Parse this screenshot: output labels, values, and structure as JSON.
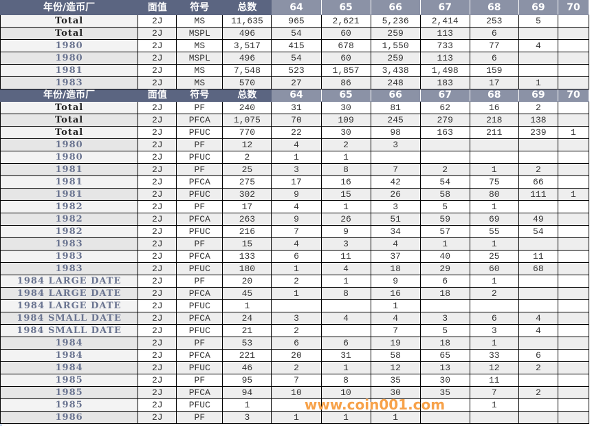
{
  "header": [
    "年份/造币厂",
    "面值",
    "符号",
    "总数",
    "64",
    "65",
    "66",
    "67",
    "68",
    "69",
    "70"
  ],
  "blocks": [
    {
      "rows": [
        [
          "Total",
          "2J",
          "MS",
          "11,635",
          "965",
          "2,621",
          "5,236",
          "2,414",
          "253",
          "5",
          ""
        ],
        [
          "Total",
          "2J",
          "MSPL",
          "496",
          "54",
          "60",
          "259",
          "113",
          "6",
          "",
          ""
        ],
        [
          "1980",
          "2J",
          "MS",
          "3,517",
          "415",
          "678",
          "1,550",
          "733",
          "77",
          "4",
          ""
        ],
        [
          "1980",
          "2J",
          "MSPL",
          "496",
          "54",
          "60",
          "259",
          "113",
          "6",
          "",
          ""
        ],
        [
          "1981",
          "2J",
          "MS",
          "7,548",
          "523",
          "1,857",
          "3,438",
          "1,498",
          "159",
          "",
          ""
        ],
        [
          "1983",
          "2J",
          "MS",
          "570",
          "27",
          "86",
          "248",
          "183",
          "17",
          "1",
          ""
        ]
      ]
    },
    {
      "rows": [
        [
          "Total",
          "2J",
          "PF",
          "240",
          "31",
          "30",
          "81",
          "62",
          "16",
          "2",
          ""
        ],
        [
          "Total",
          "2J",
          "PFCA",
          "1,075",
          "70",
          "109",
          "245",
          "279",
          "218",
          "138",
          ""
        ],
        [
          "Total",
          "2J",
          "PFUC",
          "770",
          "22",
          "30",
          "98",
          "163",
          "211",
          "239",
          "1"
        ],
        [
          "1980",
          "2J",
          "PF",
          "12",
          "4",
          "2",
          "3",
          "",
          "",
          "",
          ""
        ],
        [
          "1980",
          "2J",
          "PFUC",
          "2",
          "1",
          "1",
          "",
          "",
          "",
          "",
          ""
        ],
        [
          "1981",
          "2J",
          "PF",
          "25",
          "3",
          "8",
          "7",
          "2",
          "1",
          "2",
          ""
        ],
        [
          "1981",
          "2J",
          "PFCA",
          "275",
          "17",
          "16",
          "42",
          "54",
          "75",
          "66",
          ""
        ],
        [
          "1981",
          "2J",
          "PFUC",
          "302",
          "9",
          "15",
          "26",
          "58",
          "80",
          "111",
          "1"
        ],
        [
          "1982",
          "2J",
          "PF",
          "17",
          "4",
          "1",
          "3",
          "5",
          "1",
          "",
          ""
        ],
        [
          "1982",
          "2J",
          "PFCA",
          "263",
          "9",
          "26",
          "51",
          "59",
          "69",
          "49",
          ""
        ],
        [
          "1982",
          "2J",
          "PFUC",
          "216",
          "7",
          "9",
          "34",
          "57",
          "55",
          "54",
          ""
        ],
        [
          "1983",
          "2J",
          "PF",
          "15",
          "4",
          "3",
          "4",
          "1",
          "1",
          "",
          ""
        ],
        [
          "1983",
          "2J",
          "PFCA",
          "133",
          "6",
          "11",
          "37",
          "40",
          "25",
          "11",
          ""
        ],
        [
          "1983",
          "2J",
          "PFUC",
          "180",
          "1",
          "4",
          "18",
          "29",
          "60",
          "68",
          ""
        ],
        [
          "1984 LARGE DATE",
          "2J",
          "PF",
          "20",
          "2",
          "1",
          "9",
          "6",
          "1",
          "",
          ""
        ],
        [
          "1984 LARGE DATE",
          "2J",
          "PFCA",
          "45",
          "1",
          "8",
          "16",
          "18",
          "2",
          "",
          ""
        ],
        [
          "1984 LARGE DATE",
          "2J",
          "PFUC",
          "1",
          "",
          "",
          "1",
          "",
          "",
          "",
          ""
        ],
        [
          "1984 SMALL DATE",
          "2J",
          "PFCA",
          "24",
          "3",
          "4",
          "4",
          "3",
          "6",
          "4",
          ""
        ],
        [
          "1984 SMALL DATE",
          "2J",
          "PFUC",
          "21",
          "2",
          "",
          "7",
          "5",
          "3",
          "4",
          ""
        ],
        [
          "1984",
          "2J",
          "PF",
          "53",
          "6",
          "6",
          "19",
          "18",
          "1",
          "",
          ""
        ],
        [
          "1984",
          "2J",
          "PFCA",
          "221",
          "20",
          "31",
          "58",
          "65",
          "33",
          "6",
          ""
        ],
        [
          "1984",
          "2J",
          "PFUC",
          "46",
          "2",
          "1",
          "12",
          "13",
          "12",
          "2",
          ""
        ],
        [
          "1985",
          "2J",
          "PF",
          "95",
          "7",
          "8",
          "35",
          "30",
          "11",
          "",
          ""
        ],
        [
          "1985",
          "2J",
          "PFCA",
          "94",
          "10",
          "10",
          "30",
          "35",
          "7",
          "2",
          ""
        ],
        [
          "1985",
          "2J",
          "PFUC",
          "1",
          "",
          "",
          "",
          "",
          "1",
          "",
          ""
        ],
        [
          "1986",
          "2J",
          "PF",
          "3",
          "1",
          "1",
          "1",
          "",
          "",
          "",
          ""
        ]
      ]
    }
  ],
  "watermark": "www.coin001.com",
  "colors": {
    "header_dark": "#5b6581",
    "header_light": "#8b92a6",
    "year_text": "#6b7591",
    "watermark": "#f7a24a"
  }
}
